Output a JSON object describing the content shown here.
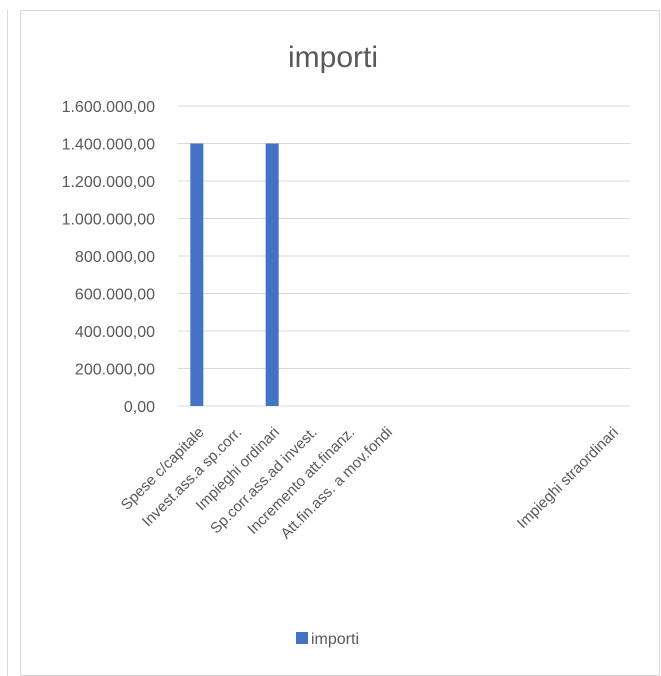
{
  "chart_data": {
    "type": "bar",
    "title": "importi",
    "categories": [
      "Spese c/capitale",
      "Invest.ass.a sp.corr.",
      "Impieghi ordinari",
      "Sp.corr.ass.ad invest.",
      "Incremento att.finanz.",
      "Att.fin.ass. a mov.fondi",
      "",
      "",
      "",
      "",
      "",
      "Impieghi straordinari"
    ],
    "series": [
      {
        "name": "importi",
        "color": "#4472c4",
        "values": [
          1400000,
          0,
          1400000,
          0,
          0,
          0,
          0,
          0,
          0,
          0,
          0,
          0
        ]
      }
    ],
    "yticks": [
      "0,00",
      "200.000,00",
      "400.000,00",
      "600.000,00",
      "800.000,00",
      "1.000.000,00",
      "1.200.000,00",
      "1.400.000,00",
      "1.600.000,00"
    ],
    "ylim": [
      0,
      1600000
    ],
    "grid": true,
    "legend": "bottom"
  }
}
